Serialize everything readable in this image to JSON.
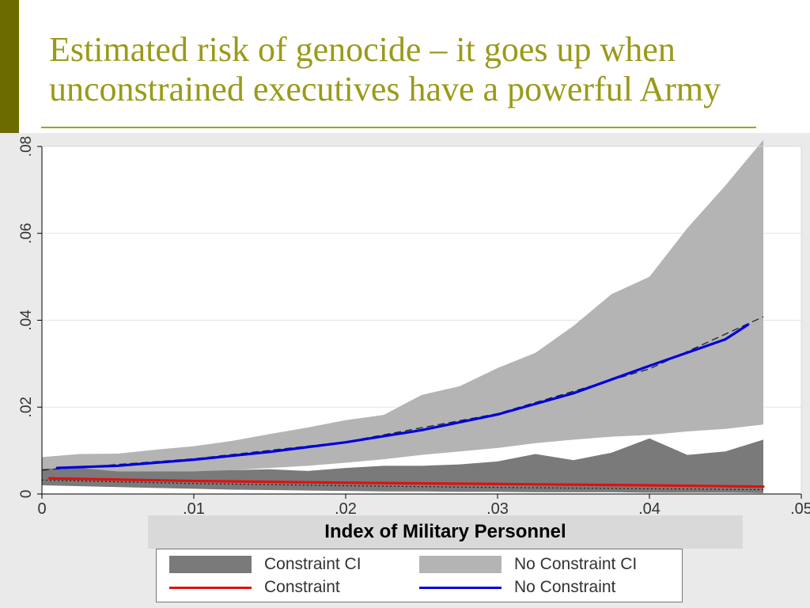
{
  "slide": {
    "title": "Estimated risk of genocide – it goes up when unconstrained executives have a powerful Army",
    "accent_color": "#6b6b00",
    "title_color": "#9a9a1a"
  },
  "chart_data": {
    "type": "line",
    "xlabel": "Index of Military Personnel",
    "ylabel": "",
    "xlim": [
      0,
      0.05
    ],
    "ylim": [
      0,
      0.08
    ],
    "x_ticks": [
      {
        "value": 0,
        "label": "0"
      },
      {
        "value": 0.01,
        "label": ".01"
      },
      {
        "value": 0.02,
        "label": ".02"
      },
      {
        "value": 0.03,
        "label": ".03"
      },
      {
        "value": 0.04,
        "label": ".04"
      },
      {
        "value": 0.05,
        "label": ".05"
      }
    ],
    "y_ticks": [
      {
        "value": 0,
        "label": "0"
      },
      {
        "value": 0.02,
        "label": ".02"
      },
      {
        "value": 0.04,
        "label": ".04"
      },
      {
        "value": 0.06,
        "label": ".06"
      },
      {
        "value": 0.08,
        "label": ".08"
      }
    ],
    "grid": true,
    "legend_position": "bottom",
    "bands": [
      {
        "name": "No Constraint CI",
        "color": "#b4b4b4",
        "x": [
          0,
          0.0025,
          0.005,
          0.0075,
          0.01,
          0.0125,
          0.015,
          0.0175,
          0.02,
          0.0225,
          0.025,
          0.0275,
          0.03,
          0.0325,
          0.035,
          0.0375,
          0.04,
          0.0425,
          0.045,
          0.0475
        ],
        "lower": [
          0.004,
          0.004,
          0.0042,
          0.0045,
          0.005,
          0.0055,
          0.006,
          0.0065,
          0.0072,
          0.008,
          0.009,
          0.0098,
          0.0106,
          0.0117,
          0.0125,
          0.0132,
          0.0136,
          0.0144,
          0.015,
          0.016
        ],
        "upper": [
          0.0085,
          0.0092,
          0.0093,
          0.0102,
          0.011,
          0.0122,
          0.0138,
          0.0153,
          0.017,
          0.0182,
          0.0228,
          0.0248,
          0.029,
          0.0325,
          0.0387,
          0.046,
          0.05,
          0.0612,
          0.071,
          0.0815
        ]
      },
      {
        "name": "Constraint CI",
        "color": "#7a7a7a",
        "x": [
          0,
          0.0025,
          0.005,
          0.0075,
          0.01,
          0.0125,
          0.015,
          0.0175,
          0.02,
          0.0225,
          0.025,
          0.0275,
          0.03,
          0.0325,
          0.035,
          0.0375,
          0.04,
          0.0425,
          0.045,
          0.0475
        ],
        "lower": [
          0.002,
          0.0018,
          0.0016,
          0.0014,
          0.0012,
          0.001,
          0.0009,
          0.0008,
          0.0007,
          0.0006,
          0.0006,
          0.0005,
          0.0005,
          0.0004,
          0.0004,
          0.0004,
          0.0003,
          0.0003,
          0.0003,
          0.0002
        ],
        "upper": [
          0.0058,
          0.006,
          0.0052,
          0.0052,
          0.0052,
          0.0055,
          0.0057,
          0.0053,
          0.006,
          0.0065,
          0.0065,
          0.0068,
          0.0075,
          0.0092,
          0.0078,
          0.0095,
          0.0128,
          0.009,
          0.0098,
          0.0125
        ]
      }
    ],
    "series": [
      {
        "name": "No Constraint",
        "color": "#0000dd",
        "x": [
          0.001,
          0.005,
          0.01,
          0.015,
          0.02,
          0.025,
          0.03,
          0.035,
          0.04,
          0.045,
          0.0465
        ],
        "y": [
          0.006,
          0.0065,
          0.0079,
          0.0097,
          0.0119,
          0.0147,
          0.0183,
          0.0232,
          0.0295,
          0.0356,
          0.039
        ]
      },
      {
        "name": "Constraint",
        "color": "#e01010",
        "x": [
          0.0005,
          0.01,
          0.02,
          0.03,
          0.04,
          0.0475
        ],
        "y": [
          0.0036,
          0.003,
          0.0026,
          0.0023,
          0.002,
          0.0017
        ]
      }
    ],
    "reference_lines": [
      {
        "style": "long-dash",
        "color": "#222222",
        "x": [
          0,
          0.01,
          0.02,
          0.03,
          0.04,
          0.0475
        ],
        "y": [
          0.0055,
          0.0081,
          0.012,
          0.0185,
          0.0288,
          0.0408
        ]
      },
      {
        "style": "dotted",
        "color": "#222222",
        "x": [
          0,
          0.01,
          0.02,
          0.03,
          0.04,
          0.0475
        ],
        "y": [
          0.0032,
          0.0024,
          0.0019,
          0.0015,
          0.0012,
          0.001
        ]
      }
    ],
    "legend": {
      "items": [
        {
          "label": "Constraint CI",
          "kind": "area",
          "color": "#7a7a7a"
        },
        {
          "label": "No Constraint CI",
          "kind": "area",
          "color": "#b4b4b4"
        },
        {
          "label": "Constraint",
          "kind": "line",
          "color": "#e01010"
        },
        {
          "label": "No Constraint",
          "kind": "line",
          "color": "#0000dd"
        }
      ]
    }
  }
}
